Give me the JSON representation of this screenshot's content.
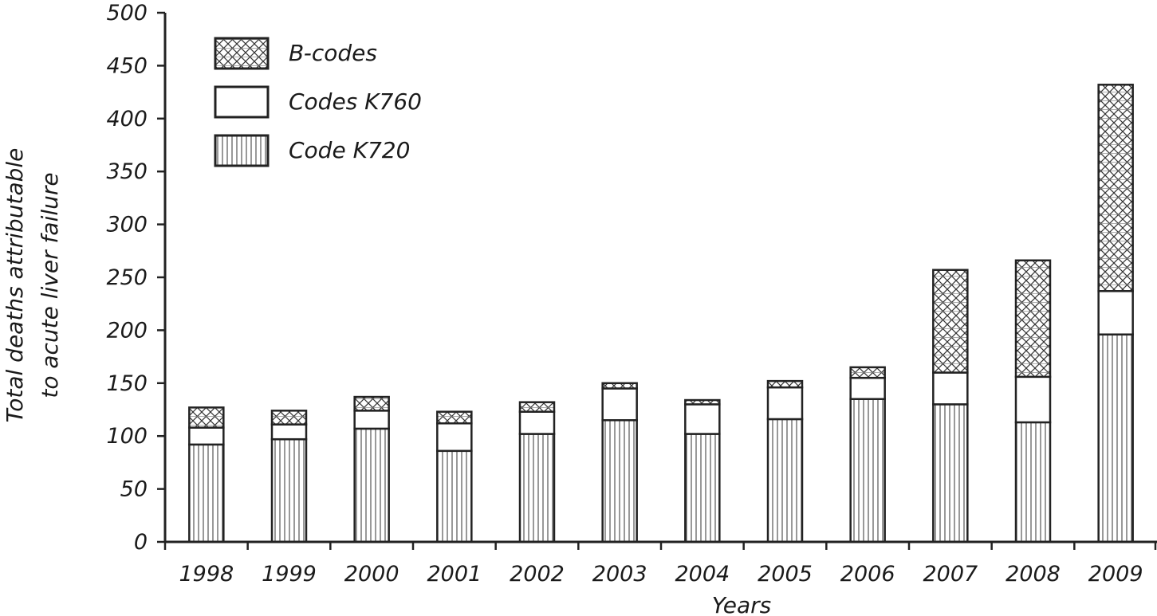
{
  "chart_data": {
    "type": "bar",
    "stacked": true,
    "categories": [
      "1998",
      "1999",
      "2000",
      "2001",
      "2002",
      "2003",
      "2004",
      "2005",
      "2006",
      "2007",
      "2008",
      "2009"
    ],
    "series": [
      {
        "name": "Code K720",
        "values": [
          92,
          97,
          107,
          86,
          102,
          115,
          102,
          116,
          135,
          130,
          113,
          196
        ],
        "pattern": "vertical-lines"
      },
      {
        "name": "Codes K760",
        "values": [
          16,
          14,
          17,
          26,
          21,
          30,
          28,
          30,
          20,
          30,
          43,
          41
        ],
        "pattern": "none"
      },
      {
        "name": "B-codes",
        "values": [
          19,
          13,
          13,
          11,
          9,
          5,
          4,
          6,
          10,
          97,
          110,
          195
        ],
        "pattern": "crosshatch"
      }
    ],
    "legend_order": [
      "B-codes",
      "Codes K760",
      "Code K720"
    ],
    "legend_position": "top-left",
    "xlabel": "Years",
    "ylabel_lines": [
      "Total deaths attributable",
      "to acute liver failure"
    ],
    "ylim": [
      0,
      500
    ],
    "yticks": [
      0,
      50,
      100,
      150,
      200,
      250,
      300,
      350,
      400,
      450,
      500
    ],
    "grid": false
  }
}
